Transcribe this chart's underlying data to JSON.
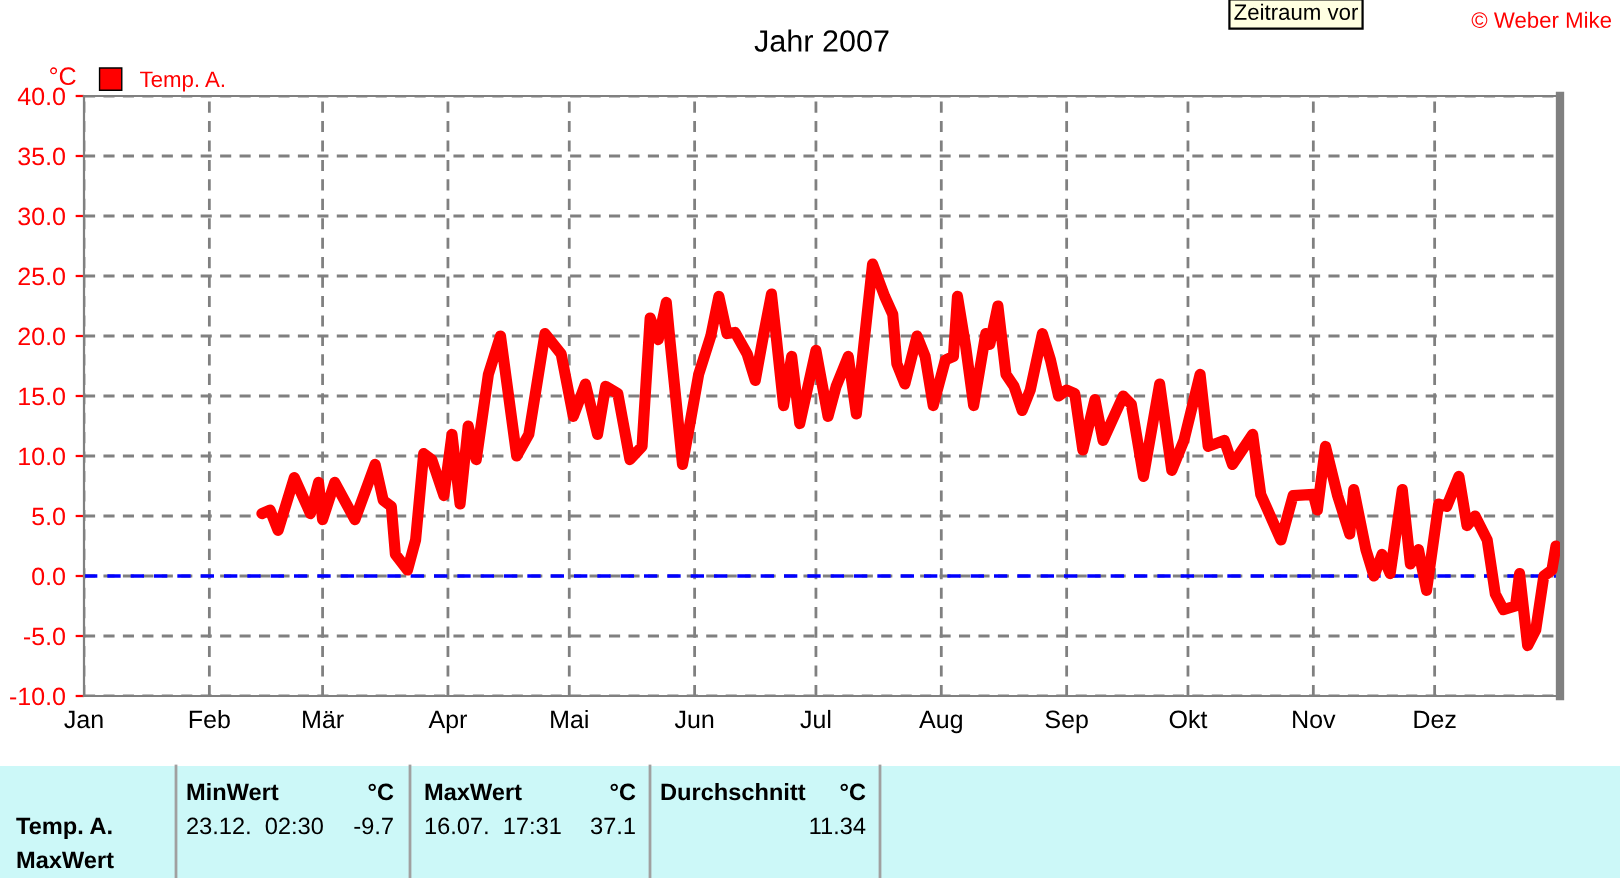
{
  "chart_data": {
    "type": "line",
    "title": "Jahr 2007",
    "ylabel": "°C",
    "x": [
      "2007-02-14",
      "2007-02-16",
      "2007-02-18",
      "2007-02-22",
      "2007-02-26",
      "2007-02-28",
      "2007-03-01",
      "2007-03-04",
      "2007-03-09",
      "2007-03-14",
      "2007-03-16",
      "2007-03-18",
      "2007-03-19",
      "2007-03-22",
      "2007-03-24",
      "2007-03-26",
      "2007-03-28",
      "2007-03-31",
      "2007-04-02",
      "2007-04-04",
      "2007-04-06",
      "2007-04-08",
      "2007-04-11",
      "2007-04-14",
      "2007-04-18",
      "2007-04-21",
      "2007-04-25",
      "2007-04-29",
      "2007-05-02",
      "2007-05-05",
      "2007-05-08",
      "2007-05-10",
      "2007-05-13",
      "2007-05-16",
      "2007-05-19",
      "2007-05-21",
      "2007-05-23",
      "2007-05-25",
      "2007-05-26",
      "2007-05-29",
      "2007-05-31",
      "2007-06-02",
      "2007-06-05",
      "2007-06-07",
      "2007-06-09",
      "2007-06-11",
      "2007-06-14",
      "2007-06-16",
      "2007-06-18",
      "2007-06-20",
      "2007-06-21",
      "2007-06-23",
      "2007-06-25",
      "2007-06-27",
      "2007-07-01",
      "2007-07-04",
      "2007-07-06",
      "2007-07-09",
      "2007-07-11",
      "2007-07-15",
      "2007-07-18",
      "2007-07-20",
      "2007-07-21",
      "2007-07-23",
      "2007-07-26",
      "2007-07-28",
      "2007-07-30",
      "2007-08-02",
      "2007-08-04",
      "2007-08-05",
      "2007-08-07",
      "2007-08-09",
      "2007-08-12",
      "2007-08-13",
      "2007-08-15",
      "2007-08-17",
      "2007-08-19",
      "2007-08-21",
      "2007-08-23",
      "2007-08-26",
      "2007-08-28",
      "2007-08-30",
      "2007-09-01",
      "2007-09-03",
      "2007-09-05",
      "2007-09-08",
      "2007-09-10",
      "2007-09-15",
      "2007-09-17",
      "2007-09-20",
      "2007-09-24",
      "2007-09-27",
      "2007-09-30",
      "2007-10-04",
      "2007-10-06",
      "2007-10-10",
      "2007-10-12",
      "2007-10-17",
      "2007-10-19",
      "2007-10-24",
      "2007-10-27",
      "2007-11-01",
      "2007-11-02",
      "2007-11-04",
      "2007-11-07",
      "2007-11-10",
      "2007-11-11",
      "2007-11-14",
      "2007-11-16",
      "2007-11-18",
      "2007-11-20",
      "2007-11-23",
      "2007-11-25",
      "2007-11-27",
      "2007-11-29",
      "2007-12-02",
      "2007-12-04",
      "2007-12-07",
      "2007-12-09",
      "2007-12-11",
      "2007-12-14",
      "2007-12-16",
      "2007-12-18",
      "2007-12-21",
      "2007-12-22",
      "2007-12-24",
      "2007-12-26",
      "2007-12-28",
      "2007-12-30",
      "2007-12-31"
    ],
    "series": [
      {
        "name": "Temp. A.",
        "color": "#ff0000",
        "values": [
          5.2,
          5.5,
          3.8,
          8.2,
          5.2,
          7.8,
          4.7,
          7.8,
          4.7,
          9.3,
          6.3,
          5.8,
          1.8,
          0.5,
          3.0,
          10.2,
          9.7,
          6.7,
          11.8,
          6.0,
          12.5,
          9.7,
          16.8,
          20.0,
          10.0,
          11.8,
          20.2,
          18.5,
          13.3,
          16.0,
          11.8,
          15.8,
          15.2,
          9.7,
          10.8,
          21.5,
          19.7,
          22.8,
          19.3,
          9.3,
          13.0,
          16.8,
          20.0,
          23.3,
          20.2,
          20.3,
          18.5,
          16.3,
          20.0,
          23.5,
          20.5,
          14.2,
          18.3,
          12.7,
          18.8,
          13.3,
          15.8,
          18.3,
          13.5,
          26.0,
          23.3,
          21.8,
          17.7,
          16.0,
          20.0,
          18.3,
          14.2,
          18.0,
          18.3,
          23.3,
          19.2,
          14.2,
          20.2,
          19.3,
          22.5,
          16.8,
          15.8,
          13.8,
          15.5,
          20.2,
          18.0,
          15.0,
          15.5,
          15.2,
          10.5,
          14.7,
          11.3,
          15.0,
          14.3,
          8.3,
          16.0,
          8.8,
          11.3,
          16.8,
          10.8,
          11.3,
          9.3,
          11.8,
          6.8,
          3.0,
          6.7,
          6.8,
          5.5,
          10.8,
          6.7,
          3.5,
          7.2,
          2.2,
          0.0,
          1.8,
          0.2,
          7.2,
          1.0,
          2.2,
          -1.2,
          6.0,
          5.8,
          8.3,
          4.2,
          5.0,
          3.0,
          -1.5,
          -2.8,
          -2.5,
          0.2,
          -5.8,
          -4.5,
          0.0,
          0.5,
          2.5
        ]
      }
    ],
    "xlim": [
      "2007-01-01",
      "2008-01-01"
    ],
    "xticks": [
      {
        "value": "2007-01-01",
        "label": "Jan"
      },
      {
        "value": "2007-02-01",
        "label": "Feb"
      },
      {
        "value": "2007-03-01",
        "label": "Mär"
      },
      {
        "value": "2007-04-01",
        "label": "Apr"
      },
      {
        "value": "2007-05-01",
        "label": "Mai"
      },
      {
        "value": "2007-06-01",
        "label": "Jun"
      },
      {
        "value": "2007-07-01",
        "label": "Jul"
      },
      {
        "value": "2007-08-01",
        "label": "Aug"
      },
      {
        "value": "2007-09-01",
        "label": "Sep"
      },
      {
        "value": "2007-10-01",
        "label": "Okt"
      },
      {
        "value": "2007-11-01",
        "label": "Nov"
      },
      {
        "value": "2007-12-01",
        "label": "Dez"
      }
    ],
    "ylim": [
      -10,
      40
    ],
    "yticks": [
      {
        "value": -10,
        "label": "-10.0"
      },
      {
        "value": -5,
        "label": "-5.0"
      },
      {
        "value": 0,
        "label": "0.0"
      },
      {
        "value": 5,
        "label": "5.0"
      },
      {
        "value": 10,
        "label": "10.0"
      },
      {
        "value": 15,
        "label": "15.0"
      },
      {
        "value": 20,
        "label": "20.0"
      },
      {
        "value": 25,
        "label": "25.0"
      },
      {
        "value": 30,
        "label": "30.0"
      },
      {
        "value": 35,
        "label": "35.0"
      },
      {
        "value": 40,
        "label": "40.0"
      }
    ],
    "ref_lines": [
      {
        "axis": "y",
        "value": 0,
        "color": "#0000ff",
        "line_style": "dashed"
      }
    ],
    "grid": true,
    "legend": "top left",
    "marker": "none",
    "line_style": "solid",
    "annotations": [
      "MinWert",
      "°C",
      "MaxWert",
      "°C",
      "Durchschnitt",
      "°C",
      "Temp. A.",
      "MaxWert",
      "23.12.  02:30",
      "-9.7",
      "16.07.  17:31",
      "37.1",
      "11.34",
      "© Weber Mike",
      "Zeitraum vor"
    ]
  }
}
